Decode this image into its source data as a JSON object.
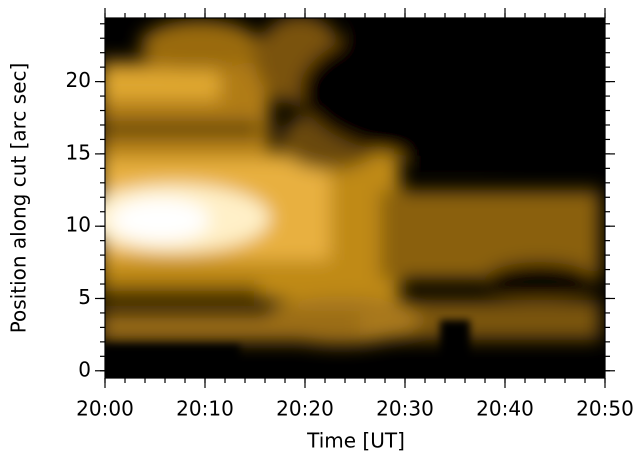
{
  "chart_data": {
    "type": "heatmap",
    "xlabel": "Time [UT]",
    "ylabel": "Position along cut [arc sec]",
    "xlim": [
      1200,
      1250
    ],
    "xticks": [
      {
        "value": 1200,
        "label": "20:00"
      },
      {
        "value": 1210,
        "label": "20:10"
      },
      {
        "value": 1220,
        "label": "20:20"
      },
      {
        "value": 1230,
        "label": "20:30"
      },
      {
        "value": 1240,
        "label": "20:40"
      },
      {
        "value": 1250,
        "label": "20:50"
      }
    ],
    "xminor": 2,
    "ylim": [
      -0.5,
      24.4
    ],
    "yticks": [
      0,
      5,
      10,
      15,
      20
    ],
    "yminor": 1
  }
}
